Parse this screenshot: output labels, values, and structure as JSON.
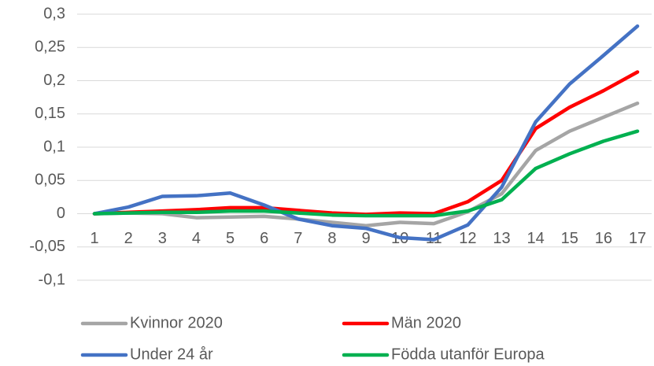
{
  "chart_data": {
    "type": "line",
    "categories": [
      "1",
      "2",
      "3",
      "4",
      "5",
      "6",
      "7",
      "8",
      "9",
      "10",
      "11",
      "12",
      "13",
      "14",
      "15",
      "16",
      "17"
    ],
    "series": [
      {
        "name": "Kvinnor 2020",
        "color": "#a5a5a5",
        "values": [
          0,
          0.001,
          0,
          -0.006,
          -0.005,
          -0.004,
          -0.008,
          -0.013,
          -0.018,
          -0.013,
          -0.015,
          0.003,
          0.03,
          0.095,
          0.124,
          0.145,
          0.166
        ]
      },
      {
        "name": "Män 2020",
        "color": "#ff0000",
        "values": [
          0,
          0.002,
          0.004,
          0.006,
          0.009,
          0.009,
          0.005,
          0.001,
          -0.001,
          0.001,
          0,
          0.018,
          0.05,
          0.128,
          0.16,
          0.185,
          0.213
        ]
      },
      {
        "name": "Under 24 år",
        "color": "#4472c4",
        "values": [
          0,
          0.01,
          0.026,
          0.027,
          0.031,
          0.013,
          -0.008,
          -0.018,
          -0.022,
          -0.036,
          -0.039,
          -0.017,
          0.04,
          0.138,
          0.195,
          0.238,
          0.282
        ]
      },
      {
        "name": "Födda utanför Europa",
        "color": "#00b050",
        "values": [
          0,
          0.001,
          0.002,
          0.002,
          0.004,
          0.004,
          0.001,
          -0.002,
          -0.003,
          -0.003,
          -0.003,
          0.004,
          0.021,
          0.068,
          0.09,
          0.109,
          0.124
        ]
      }
    ],
    "ylim": [
      -0.1,
      0.3
    ],
    "yticks": [
      {
        "value": -0.1,
        "label": "-0,1"
      },
      {
        "value": -0.05,
        "label": "-0,05"
      },
      0,
      {
        "value": 0.05,
        "label": "0,05"
      },
      {
        "value": 0.1,
        "label": "0,1"
      },
      {
        "value": 0.15,
        "label": "0,15"
      },
      {
        "value": 0.2,
        "label": "0,2"
      },
      {
        "value": 0.25,
        "label": "0,25"
      },
      {
        "value": 0.3,
        "label": "0,3"
      }
    ],
    "grid": true,
    "legend": "bottom"
  }
}
